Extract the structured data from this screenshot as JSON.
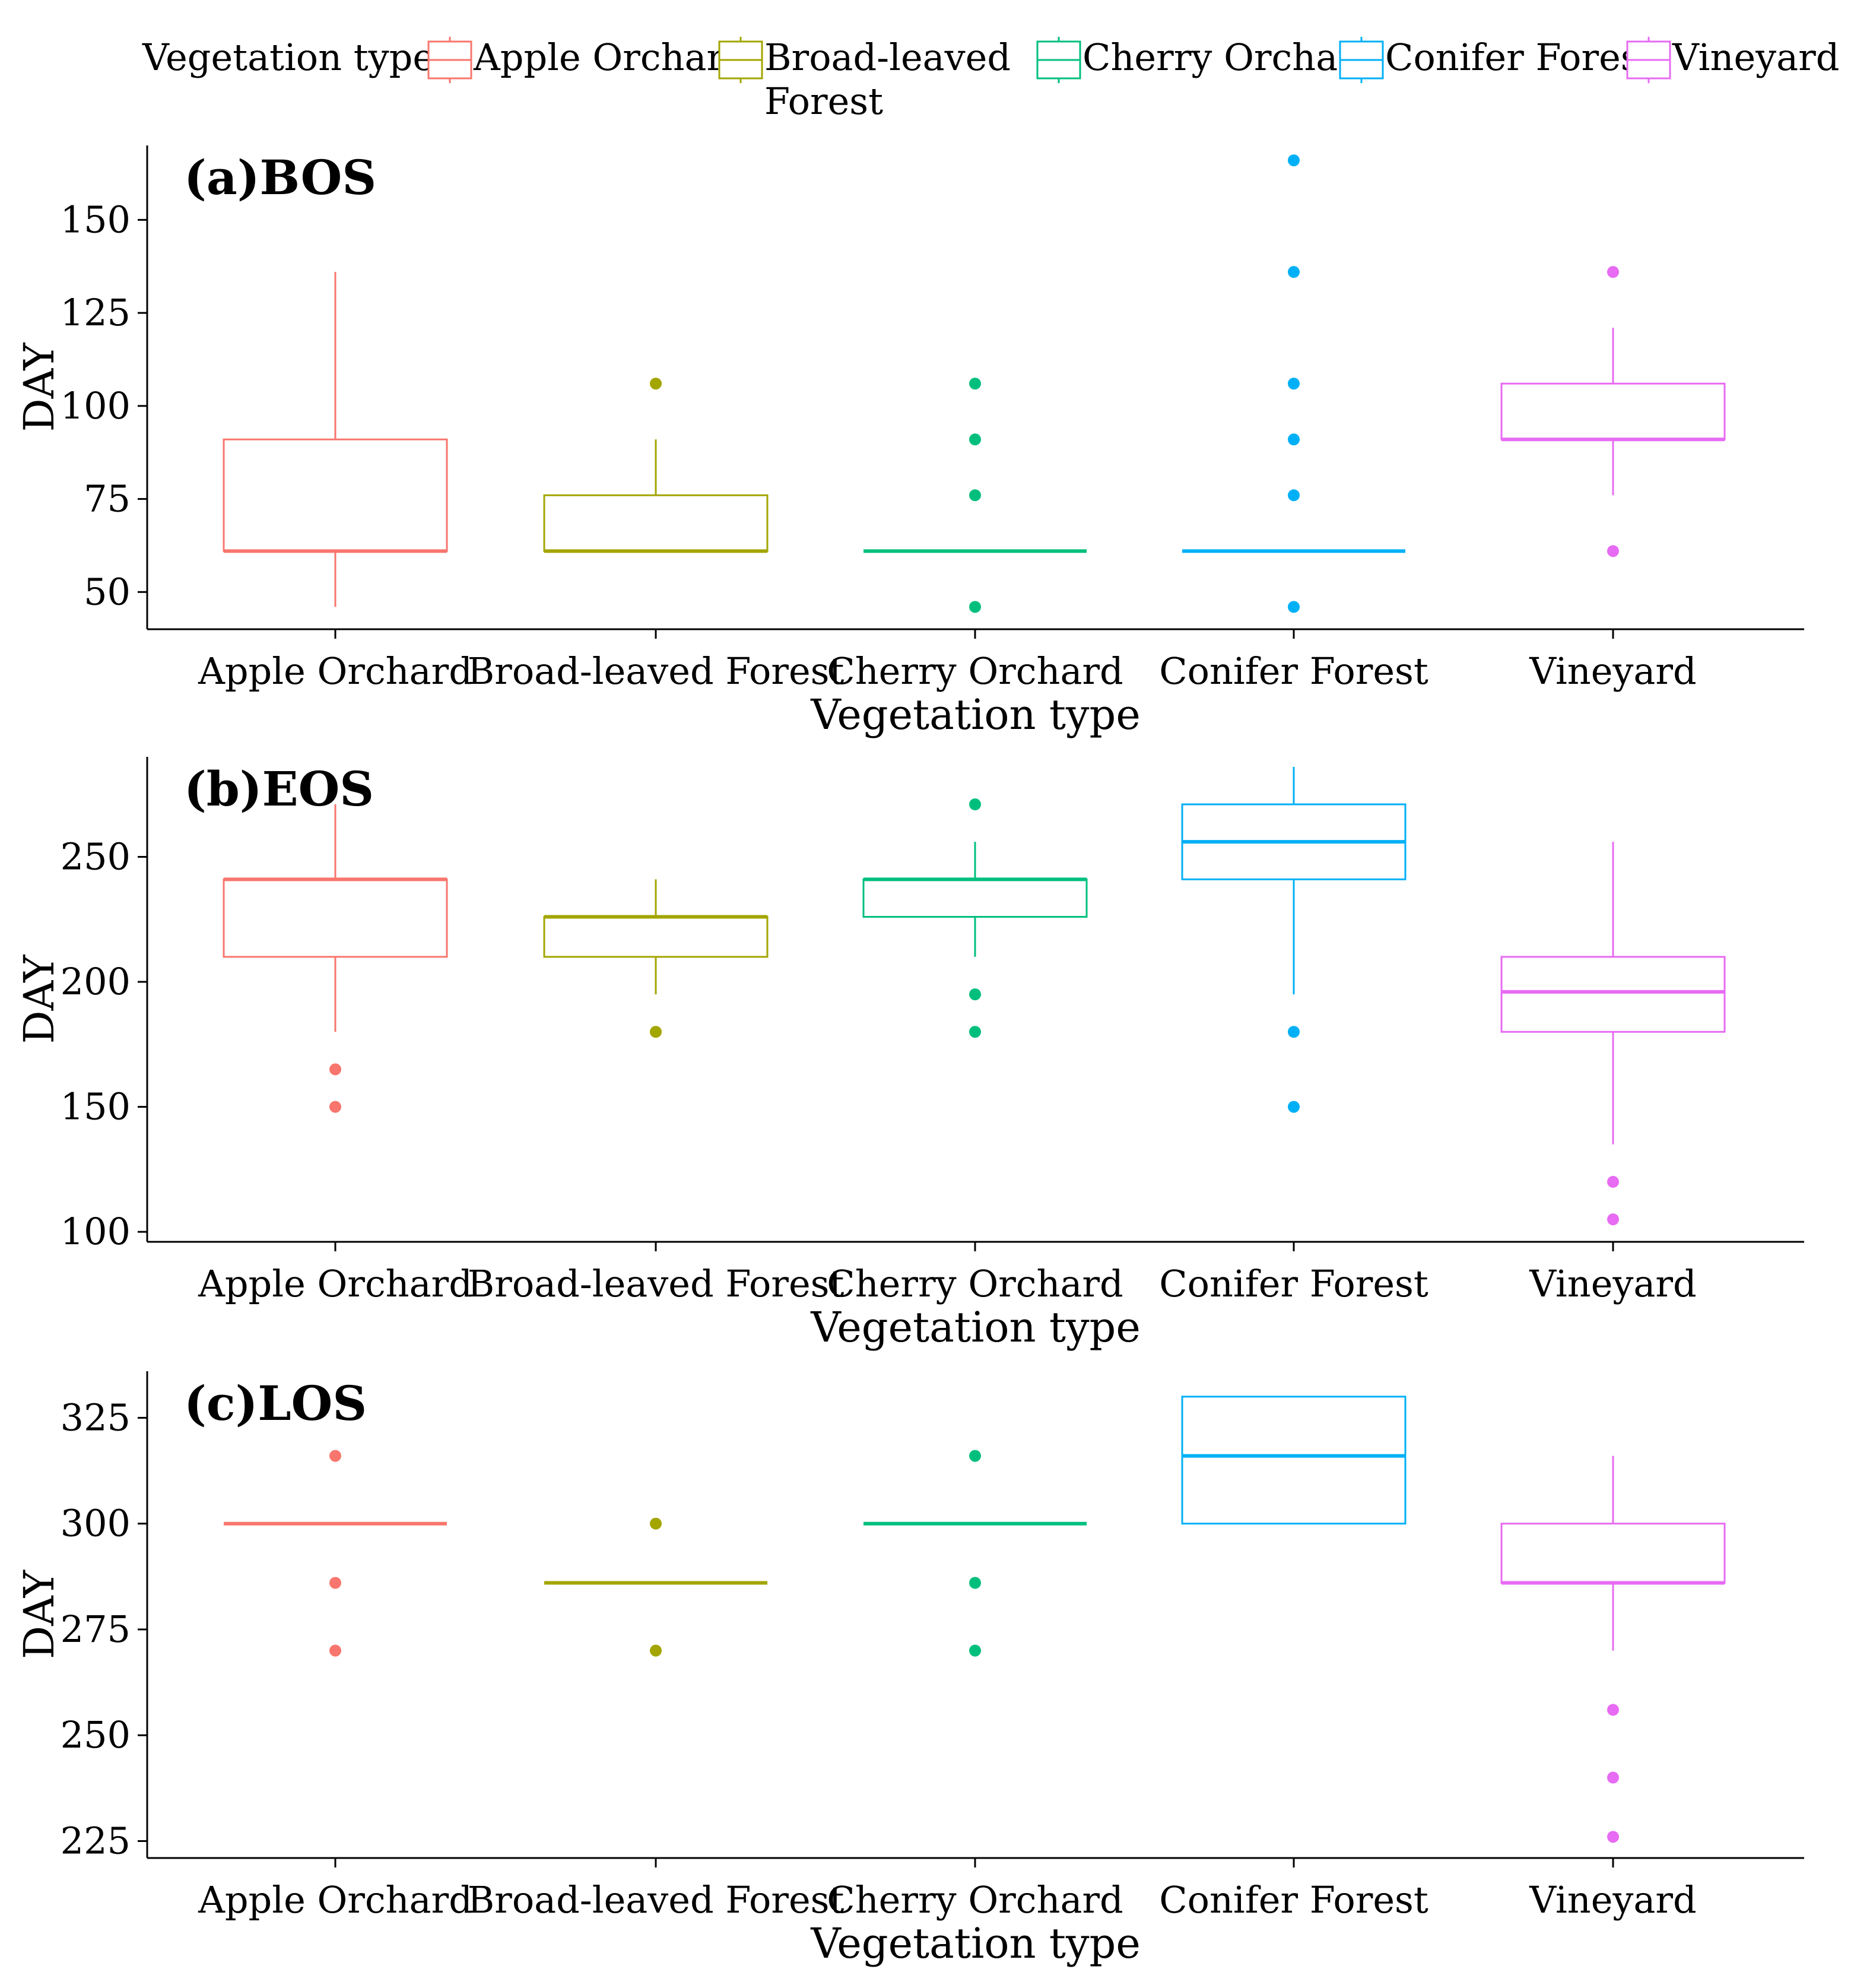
{
  "legend": {
    "title": "Vegetation type",
    "entries": [
      {
        "name": "Apple Orchard",
        "lines": [
          "Apple Orchard"
        ],
        "color": "#F8766D"
      },
      {
        "name": "Broad-leaved Forest",
        "lines": [
          "Broad-leaved",
          "Forest"
        ],
        "color": "#A3A500"
      },
      {
        "name": "Cherry Orchard",
        "lines": [
          "Cherry Orchard"
        ],
        "color": "#00BF7D"
      },
      {
        "name": "Conifer Forest",
        "lines": [
          "Conifer Forest"
        ],
        "color": "#00B0F6"
      },
      {
        "name": "Vineyard",
        "lines": [
          "Vineyard"
        ],
        "color": "#E76BF3"
      }
    ]
  },
  "chart_data": [
    {
      "type": "box",
      "title": "(a)BOS",
      "xlabel": "Vegetation type",
      "ylabel": "DAY",
      "ylim": [
        40,
        170
      ],
      "yticks": [
        50,
        75,
        100,
        125,
        150
      ],
      "categories": [
        "Apple Orchard",
        "Broad-leaved Forest",
        "Cherry Orchard",
        "Conifer Forest",
        "Vineyard"
      ],
      "boxes": [
        {
          "category": "Apple Orchard",
          "whisker_low": 46,
          "q1": 61,
          "median": 61,
          "q3": 91,
          "whisker_high": 136,
          "outliers": []
        },
        {
          "category": "Broad-leaved Forest",
          "whisker_low": 61,
          "q1": 61,
          "median": 61,
          "q3": 76,
          "whisker_high": 91,
          "outliers": [
            106
          ]
        },
        {
          "category": "Cherry Orchard",
          "whisker_low": 61,
          "q1": 61,
          "median": 61,
          "q3": 61,
          "whisker_high": 61,
          "outliers": [
            46,
            76,
            91,
            106
          ]
        },
        {
          "category": "Conifer Forest",
          "whisker_low": 61,
          "q1": 61,
          "median": 61,
          "q3": 61,
          "whisker_high": 61,
          "outliers": [
            46,
            76,
            91,
            106,
            136,
            166
          ]
        },
        {
          "category": "Vineyard",
          "whisker_low": 76,
          "q1": 91,
          "median": 91,
          "q3": 106,
          "whisker_high": 121,
          "outliers": [
            61,
            136
          ]
        }
      ]
    },
    {
      "type": "box",
      "title": "(b)EOS",
      "xlabel": "Vegetation type",
      "ylabel": "DAY",
      "ylim": [
        96,
        290
      ],
      "yticks": [
        100,
        150,
        200,
        250
      ],
      "categories": [
        "Apple Orchard",
        "Broad-leaved Forest",
        "Cherry Orchard",
        "Conifer Forest",
        "Vineyard"
      ],
      "boxes": [
        {
          "category": "Apple Orchard",
          "whisker_low": 180,
          "q1": 210,
          "median": 241,
          "q3": 241,
          "whisker_high": 271,
          "outliers": [
            150,
            165
          ]
        },
        {
          "category": "Broad-leaved Forest",
          "whisker_low": 195,
          "q1": 210,
          "median": 226,
          "q3": 226,
          "whisker_high": 241,
          "outliers": [
            180
          ]
        },
        {
          "category": "Cherry Orchard",
          "whisker_low": 210,
          "q1": 226,
          "median": 241,
          "q3": 241,
          "whisker_high": 256,
          "outliers": [
            180,
            195,
            271
          ]
        },
        {
          "category": "Conifer Forest",
          "whisker_low": 195,
          "q1": 241,
          "median": 256,
          "q3": 271,
          "whisker_high": 286,
          "outliers": [
            150,
            180
          ]
        },
        {
          "category": "Vineyard",
          "whisker_low": 135,
          "q1": 180,
          "median": 196,
          "q3": 210,
          "whisker_high": 256,
          "outliers": [
            105,
            120
          ]
        }
      ]
    },
    {
      "type": "box",
      "title": "(c)LOS",
      "xlabel": "Vegetation type",
      "ylabel": "DAY",
      "ylim": [
        221,
        336
      ],
      "yticks": [
        225,
        250,
        275,
        300,
        325
      ],
      "categories": [
        "Apple Orchard",
        "Broad-leaved Forest",
        "Cherry Orchard",
        "Conifer Forest",
        "Vineyard"
      ],
      "boxes": [
        {
          "category": "Apple Orchard",
          "whisker_low": 300,
          "q1": 300,
          "median": 300,
          "q3": 300,
          "whisker_high": 300,
          "outliers": [
            270,
            286,
            316
          ]
        },
        {
          "category": "Broad-leaved Forest",
          "whisker_low": 286,
          "q1": 286,
          "median": 286,
          "q3": 286,
          "whisker_high": 286,
          "outliers": [
            270,
            300
          ]
        },
        {
          "category": "Cherry Orchard",
          "whisker_low": 300,
          "q1": 300,
          "median": 300,
          "q3": 300,
          "whisker_high": 300,
          "outliers": [
            270,
            286,
            316
          ]
        },
        {
          "category": "Conifer Forest",
          "whisker_low": 300,
          "q1": 300,
          "median": 316,
          "q3": 330,
          "whisker_high": 330,
          "outliers": []
        },
        {
          "category": "Vineyard",
          "whisker_low": 270,
          "q1": 286,
          "median": 286,
          "q3": 300,
          "whisker_high": 316,
          "outliers": [
            226,
            240,
            256
          ]
        }
      ]
    }
  ]
}
